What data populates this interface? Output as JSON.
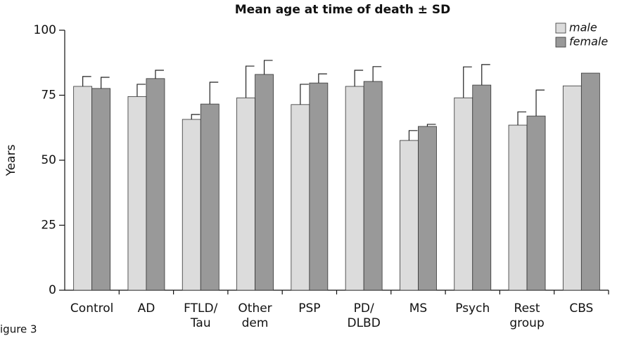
{
  "chart_data": {
    "type": "bar",
    "title": "Mean age at time of death ± SD",
    "ylabel": "Years",
    "figure_label": "igure 3",
    "categories": [
      [
        "Control"
      ],
      [
        "AD"
      ],
      [
        "FTLD/",
        "Tau"
      ],
      [
        "Other",
        "dem"
      ],
      [
        "PSP"
      ],
      [
        "PD/",
        "DLBD"
      ],
      [
        "MS"
      ],
      [
        "Psych"
      ],
      [
        "Rest",
        "group"
      ],
      [
        "CBS"
      ]
    ],
    "series": [
      {
        "name": "male",
        "color": "#dcdcdc",
        "values": [
          78.4,
          74.5,
          65.7,
          74.0,
          71.4,
          78.4,
          57.6,
          74.0,
          63.5,
          78.6
        ],
        "errors": [
          3.8,
          4.7,
          1.9,
          12.2,
          7.8,
          6.2,
          3.8,
          11.9,
          5.1,
          null
        ]
      },
      {
        "name": "female",
        "color": "#999999",
        "values": [
          77.6,
          81.4,
          71.6,
          83.0,
          79.7,
          80.3,
          63.0,
          78.9,
          67.0,
          83.5
        ],
        "errors": [
          4.3,
          3.2,
          8.4,
          5.4,
          3.5,
          5.7,
          0.8,
          7.9,
          10.0,
          null
        ]
      }
    ],
    "ylim": [
      0,
      100
    ],
    "yticks": [
      0,
      25,
      50,
      75,
      100
    ],
    "legend": "top-right"
  }
}
